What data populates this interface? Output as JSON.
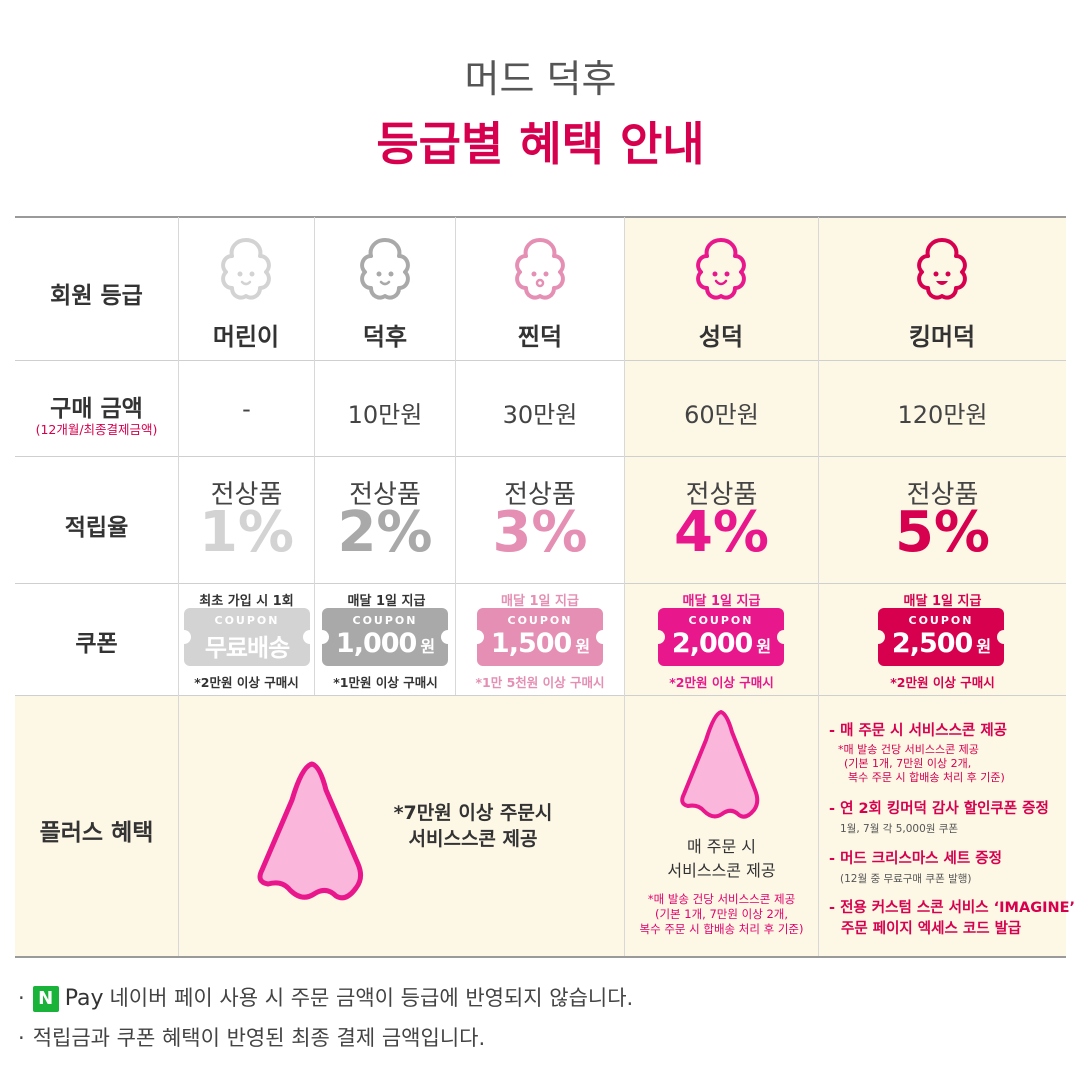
{
  "header": {
    "line1": "머드 덕후",
    "line2": "등급별 혜택 안내"
  },
  "row_labels": {
    "grade": "회원 등급",
    "amount": "구매 금액",
    "amount_note": "(12개월/최종결제금액)",
    "rate": "적립율",
    "coupon": "쿠폰",
    "plus": "플러스 혜택"
  },
  "grades": [
    {
      "name": "머린이",
      "amount": "-",
      "rate_label": "전상품",
      "rate": "1%",
      "coupon_top": "최초 가입 시 1회",
      "coupon_label": "COUPON",
      "coupon_value": "무료배송",
      "coupon_unit": "",
      "coupon_bottom": "*2만원 이상 구매시",
      "color": "#d3d3d3"
    },
    {
      "name": "덕후",
      "amount": "10만원",
      "rate_label": "전상품",
      "rate": "2%",
      "coupon_top": "매달 1일 지급",
      "coupon_label": "COUPON",
      "coupon_value": "1,000",
      "coupon_unit": "원",
      "coupon_bottom": "*1만원 이상 구매시",
      "color": "#a9a9a9"
    },
    {
      "name": "찐덕",
      "amount": "30만원",
      "rate_label": "전상품",
      "rate": "3%",
      "coupon_top": "매달 1일 지급",
      "coupon_label": "COUPON",
      "coupon_value": "1,500",
      "coupon_unit": "원",
      "coupon_bottom": "*1만 5천원 이상 구매시",
      "color": "#e48fb3"
    },
    {
      "name": "성덕",
      "amount": "60만원",
      "rate_label": "전상품",
      "rate": "4%",
      "coupon_top": "매달 1일 지급",
      "coupon_label": "COUPON",
      "coupon_value": "2,000",
      "coupon_unit": "원",
      "coupon_bottom": "*2만원 이상 구매시",
      "color": "#e8178c"
    },
    {
      "name": "킹머덕",
      "amount": "120만원",
      "rate_label": "전상품",
      "rate": "5%",
      "coupon_top": "매달 1일 지급",
      "coupon_label": "COUPON",
      "coupon_value": "2,500",
      "coupon_unit": "원",
      "coupon_bottom": "*2만원 이상 구매시",
      "color": "#d6004e"
    }
  ],
  "plus": {
    "low_line1": "*7만원 이상 주문시",
    "low_line2": "서비스스콘 제공",
    "mid_line1": "매 주문 시",
    "mid_line2": "서비스스콘 제공",
    "mid_note1": "*매 발송 건당 서비스스콘 제공",
    "mid_note2": "(기본 1개, 7만원 이상 2개,",
    "mid_note3": "복수 주문 시 합배송 처리 후 기준)",
    "king": [
      {
        "title": "- 매 주문 시 서비스스콘 제공",
        "sub": [
          "*매 발송 건당 서비스스콘 제공",
          "(기본 1개, 7만원 이상 2개,",
          "복수 주문 시 합배송 처리 후 기준)"
        ]
      },
      {
        "title": "- 연 2회 킹머덕 감사 할인쿠폰 증정",
        "gray": "1월, 7월 각 5,000원 쿠폰"
      },
      {
        "title": "- 머드 크리스마스 세트 증정",
        "gray": "(12월 중 무료구매 쿠폰 발행)"
      },
      {
        "title": "- 전용 커스텀 스콘 서비스 ‘IMAGINE’",
        "title2": "주문 페이지 엑세스 코드 발급"
      }
    ]
  },
  "footer": {
    "npay_icon": "N",
    "pay_word": "Pay",
    "note1": "네이버 페이 사용 시 주문 금액이 등급에 반영되지 않습니다.",
    "note2": "적립금과 쿠폰 혜택이 반영된 최종 결제 금액입니다.",
    "bullet": "·"
  },
  "colors": {
    "accent": "#d6004e",
    "highlight_bg": "#fdf7e6",
    "scone_fill": "#fbb6dc",
    "scone_stroke": "#e8178c"
  },
  "icons": {
    "grade_mascot": "scone-mascot-icon",
    "cone": "scone-icon",
    "pay": "naver-pay-icon"
  }
}
